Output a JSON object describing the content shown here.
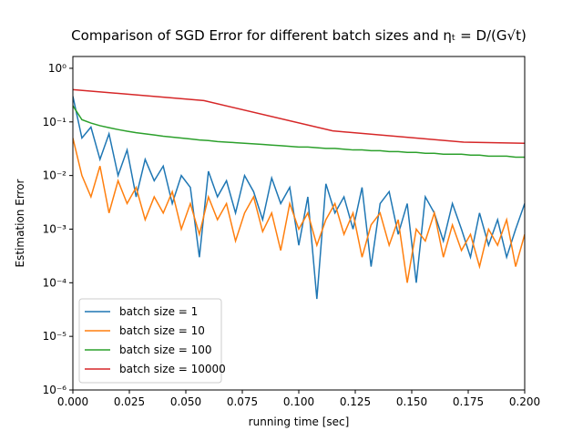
{
  "chart_data": {
    "type": "line",
    "title": "Comparison of SGD Error for different batch sizes and ηₜ = D/(G√t)",
    "x_label": "running time [sec]",
    "y_label": "Estimation Error",
    "log_y": true,
    "legend": "lower left",
    "xlim": [
      0,
      0.2
    ],
    "ylim": [
      1e-06,
      1.66
    ],
    "xticks": [
      {
        "value": 0,
        "label": "0.000"
      },
      0.025,
      {
        "value": 0.05,
        "label": "0.050"
      },
      0.075,
      {
        "value": 0.1,
        "label": "0.100"
      },
      0.125,
      {
        "value": 0.15,
        "label": "0.150"
      },
      0.175,
      {
        "value": 0.2,
        "label": "0.200"
      }
    ],
    "yticks": [
      {
        "value": 1e-06,
        "label": "10⁻⁶"
      },
      {
        "value": 1e-05,
        "label": "10⁻⁵"
      },
      {
        "value": 0.0001,
        "label": "10⁻⁴"
      },
      {
        "value": 0.001,
        "label": "10⁻³"
      },
      {
        "value": 0.01,
        "label": "10⁻²"
      },
      {
        "value": 0.1,
        "label": "10⁻¹"
      },
      {
        "value": 1,
        "label": "10⁰"
      }
    ],
    "x": [
      0,
      0.004,
      0.008,
      0.012,
      0.016,
      0.02,
      0.024,
      0.028,
      0.032,
      0.036,
      0.04,
      0.044,
      0.048,
      0.052,
      0.056,
      0.06,
      0.064,
      0.068,
      0.072,
      0.076,
      0.08,
      0.084,
      0.088,
      0.092,
      0.096,
      0.1,
      0.104,
      0.108,
      0.112,
      0.116,
      0.12,
      0.124,
      0.128,
      0.132,
      0.136,
      0.14,
      0.144,
      0.148,
      0.152,
      0.156,
      0.16,
      0.164,
      0.168,
      0.172,
      0.176,
      0.18,
      0.184,
      0.188,
      0.192,
      0.196,
      0.2
    ],
    "series": [
      {
        "name": "batch size = 1",
        "color": "#1f77b4",
        "values": [
          0.3,
          0.05,
          0.08,
          0.02,
          0.06,
          0.01,
          0.03,
          0.004,
          0.02,
          0.008,
          0.015,
          0.003,
          0.01,
          0.006,
          0.0003,
          0.012,
          0.004,
          0.008,
          0.002,
          0.01,
          0.005,
          0.0015,
          0.009,
          0.003,
          0.006,
          0.0005,
          0.004,
          5e-05,
          0.007,
          0.002,
          0.004,
          0.001,
          0.006,
          0.0002,
          0.003,
          0.005,
          0.0008,
          0.003,
          0.0001,
          0.004,
          0.002,
          0.0006,
          0.003,
          0.001,
          0.0003,
          0.002,
          0.0005,
          0.0015,
          0.0003,
          0.001,
          0.003
        ]
      },
      {
        "name": "batch size = 10",
        "color": "#ff7f0e",
        "values": [
          0.05,
          0.01,
          0.004,
          0.015,
          0.002,
          0.008,
          0.003,
          0.006,
          0.0015,
          0.004,
          0.002,
          0.005,
          0.001,
          0.003,
          0.0008,
          0.004,
          0.0015,
          0.003,
          0.0006,
          0.002,
          0.004,
          0.0009,
          0.002,
          0.0004,
          0.003,
          0.001,
          0.002,
          0.0005,
          0.0015,
          0.003,
          0.0008,
          0.002,
          0.0003,
          0.0012,
          0.002,
          0.0005,
          0.0015,
          0.0001,
          0.001,
          0.0006,
          0.002,
          0.0003,
          0.0012,
          0.0004,
          0.0008,
          0.0002,
          0.001,
          0.0005,
          0.0015,
          0.0002,
          0.0008
        ]
      },
      {
        "name": "batch size = 100",
        "color": "#2ca02c",
        "values": [
          0.2,
          0.11,
          0.095,
          0.085,
          0.078,
          0.072,
          0.067,
          0.063,
          0.06,
          0.057,
          0.054,
          0.052,
          0.05,
          0.048,
          0.046,
          0.045,
          0.043,
          0.042,
          0.041,
          0.04,
          0.039,
          0.038,
          0.037,
          0.036,
          0.035,
          0.034,
          0.034,
          0.033,
          0.032,
          0.032,
          0.031,
          0.03,
          0.03,
          0.029,
          0.029,
          0.028,
          0.028,
          0.027,
          0.027,
          0.026,
          0.026,
          0.025,
          0.025,
          0.025,
          0.024,
          0.024,
          0.023,
          0.023,
          0.023,
          0.022,
          0.022
        ]
      },
      {
        "name": "batch size = 10000",
        "color": "#d62728",
        "x": [
          0,
          0.058,
          0.115,
          0.173,
          0.2
        ],
        "values": [
          0.4,
          0.25,
          0.068,
          0.042,
          0.04
        ]
      }
    ]
  }
}
